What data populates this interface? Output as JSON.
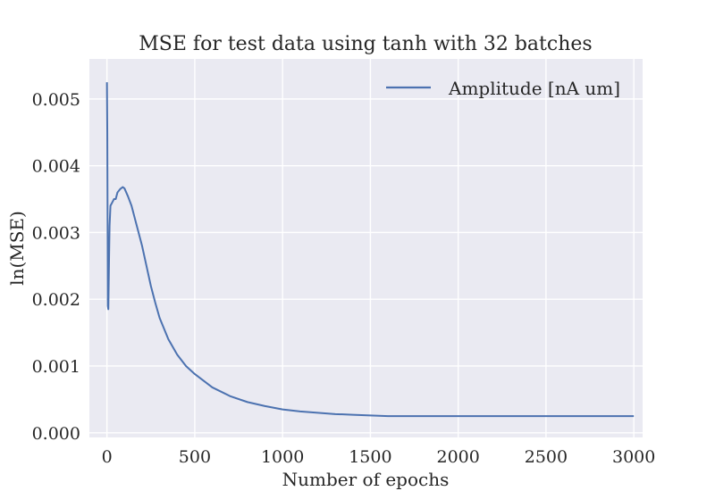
{
  "chart_data": {
    "type": "line",
    "title": "MSE for test data using tanh with 32 batches",
    "xlabel": "Number of epochs",
    "ylabel": "ln(MSE)",
    "xlim": [
      -100,
      3050
    ],
    "ylim": [
      -7e-05,
      0.0056
    ],
    "x_ticks": [
      0,
      500,
      1000,
      1500,
      2000,
      2500,
      3000
    ],
    "x_tick_labels": [
      "0",
      "500",
      "1000",
      "1500",
      "2000",
      "2500",
      "3000"
    ],
    "y_ticks": [
      0.0,
      0.001,
      0.002,
      0.003,
      0.004,
      0.005
    ],
    "y_tick_labels": [
      "0.000",
      "0.001",
      "0.002",
      "0.003",
      "0.004",
      "0.005"
    ],
    "grid": true,
    "legend": "top-right",
    "colors": {
      "line": "#4c72b0",
      "background": "#eaeaf2",
      "grid": "#ffffff"
    },
    "series": [
      {
        "name": "Amplitude [nA um]",
        "x": [
          0,
          2,
          5,
          8,
          12,
          15,
          20,
          30,
          40,
          50,
          60,
          75,
          90,
          100,
          110,
          120,
          140,
          160,
          180,
          200,
          225,
          250,
          275,
          300,
          350,
          400,
          450,
          500,
          550,
          600,
          700,
          800,
          900,
          1000,
          1100,
          1200,
          1300,
          1400,
          1500,
          1600,
          1650,
          1700,
          2000,
          2500,
          3000
        ],
        "y": [
          0.00525,
          0.0045,
          0.0019,
          0.00185,
          0.0026,
          0.0031,
          0.0034,
          0.00345,
          0.0035,
          0.0035,
          0.0036,
          0.00365,
          0.00368,
          0.00366,
          0.0036,
          0.00354,
          0.0034,
          0.0032,
          0.003,
          0.0028,
          0.0025,
          0.0022,
          0.00195,
          0.00172,
          0.0014,
          0.00117,
          0.001,
          0.00088,
          0.00078,
          0.00068,
          0.00055,
          0.00046,
          0.0004,
          0.00035,
          0.00032,
          0.0003,
          0.00028,
          0.00027,
          0.00026,
          0.00025,
          0.00025,
          0.00025,
          0.00025,
          0.00025,
          0.00025
        ]
      }
    ]
  }
}
